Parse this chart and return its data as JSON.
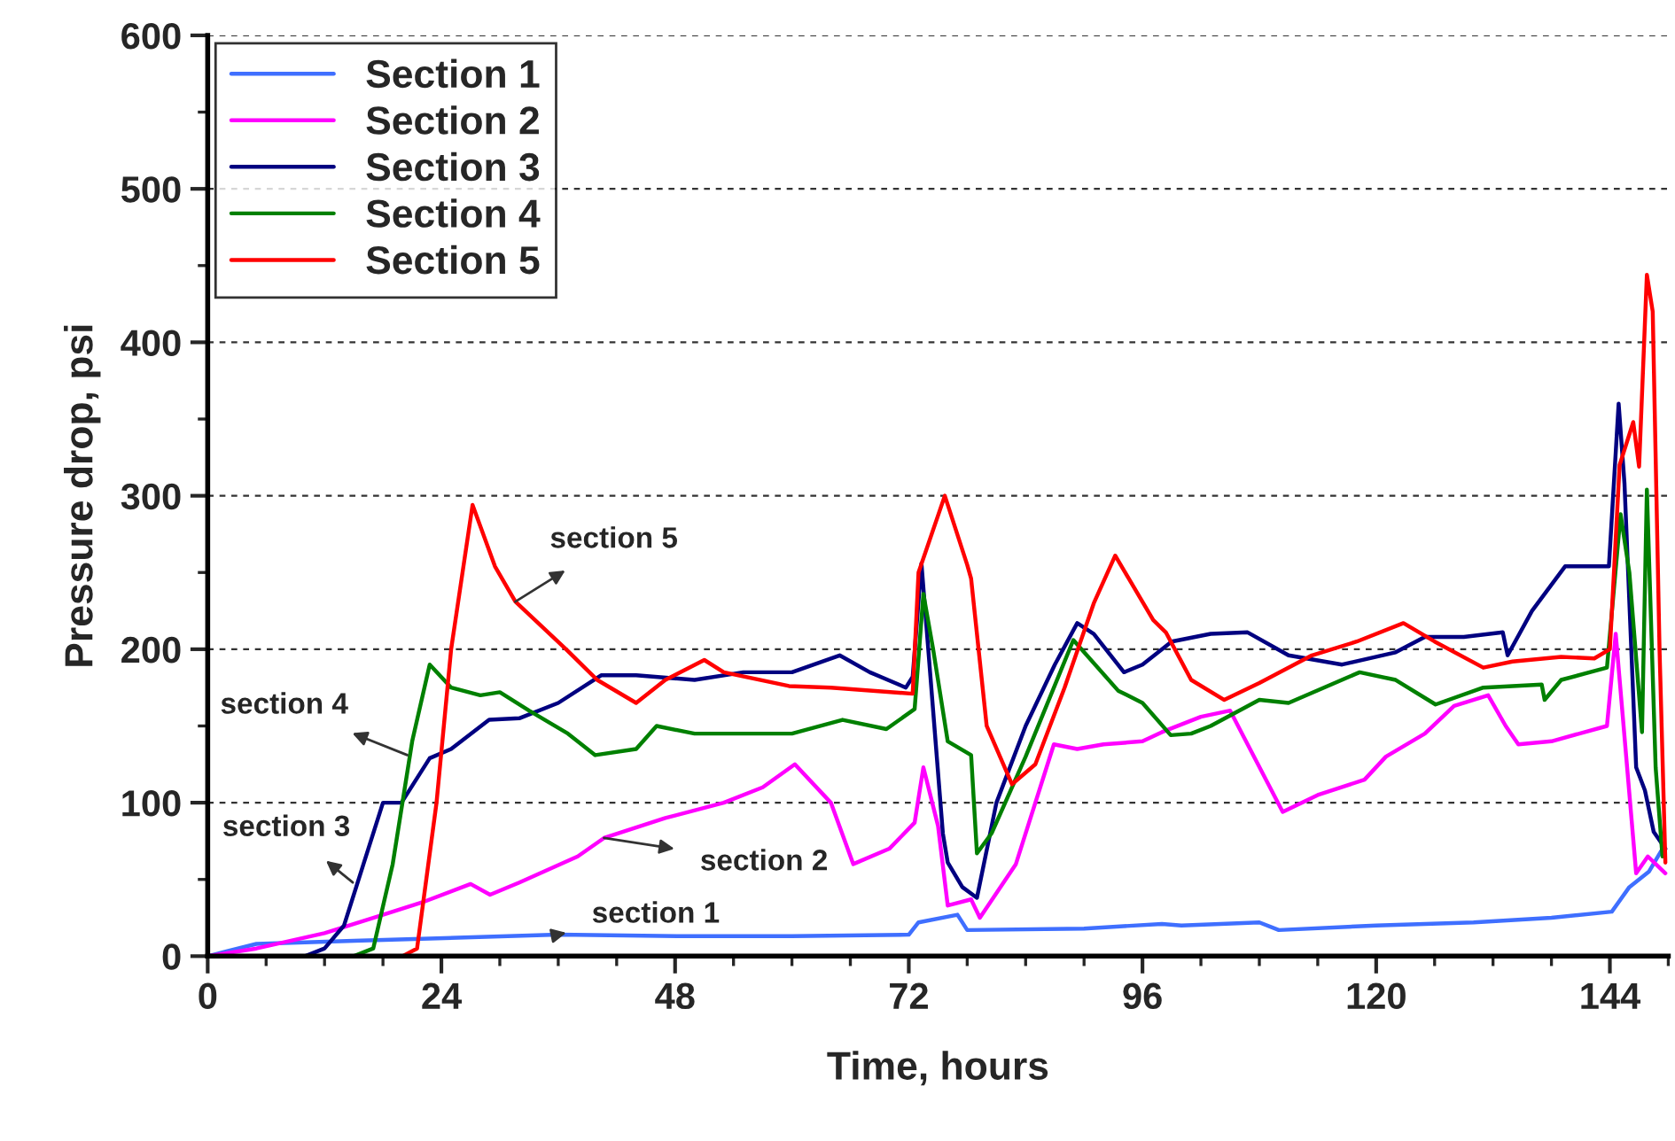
{
  "chart_data": {
    "type": "line",
    "xlabel": "Time, hours",
    "ylabel": "Pressure drop, psi",
    "xlim": [
      0,
      150
    ],
    "xticks": [
      0,
      24,
      48,
      72,
      96,
      120,
      144
    ],
    "ylim": [
      0,
      600
    ],
    "yticks": [
      0,
      100,
      200,
      300,
      400,
      500,
      600
    ],
    "grid": "y",
    "legend": "top left",
    "line_style": "solid",
    "marker": "none",
    "series": [
      {
        "name": "Section 1",
        "color": "#3f6fff",
        "x": [
          0,
          5,
          15,
          36,
          49,
          60,
          72,
          73,
          77,
          78,
          90,
          98,
          100,
          108,
          110,
          120,
          130,
          138,
          144.2,
          146,
          148,
          149.5
        ],
        "values": [
          0,
          8,
          10,
          14,
          13,
          13,
          14,
          22,
          27,
          17,
          18,
          21,
          20,
          22,
          17,
          20,
          22,
          25,
          29,
          45,
          55,
          71
        ]
      },
      {
        "name": "Section 2",
        "color": "#ff00ff",
        "x": [
          0,
          5,
          12,
          17,
          22,
          27,
          29,
          32,
          38,
          40.7,
          47,
          53,
          57,
          60.3,
          64,
          66.3,
          70,
          72.6,
          73.5,
          75,
          76,
          78.4,
          79.3,
          83,
          86.9,
          89.3,
          92,
          96,
          98,
          102,
          105,
          110.4,
          114,
          118.8,
          121,
          125,
          128,
          131.5,
          133.3,
          134.6,
          138,
          143.7,
          144.6,
          146.7,
          147.9,
          149.7
        ],
        "values": [
          0,
          5,
          15,
          25,
          35,
          47,
          40,
          48,
          65,
          77,
          90,
          100,
          110,
          125,
          100,
          60,
          70,
          87,
          123,
          85,
          33,
          37,
          25,
          60,
          138,
          135,
          138,
          140,
          146,
          156,
          160,
          94,
          105,
          115,
          130,
          145,
          163,
          170,
          150,
          138,
          140,
          150,
          210,
          54,
          65,
          54
        ]
      },
      {
        "name": "Section 3",
        "color": "#000080",
        "x": [
          0,
          10,
          12,
          14,
          16,
          18,
          19.9,
          22.8,
          25,
          28.9,
          32,
          36,
          40.4,
          44,
          50,
          55,
          60,
          64.9,
          68,
          71.7,
          72.4,
          73.3,
          74,
          75.5,
          76,
          77.5,
          79,
          81,
          84,
          87,
          89.3,
          91,
          94.1,
          96,
          99,
          103,
          106.8,
          111,
          116.5,
          122,
          125,
          129,
          133,
          133.5,
          136,
          139.4,
          143.9,
          144.9,
          145.5,
          146.7,
          147.6,
          148.5,
          149.7
        ],
        "values": [
          0,
          0,
          5,
          20,
          60,
          100,
          100,
          129,
          135,
          154,
          155,
          165,
          183,
          183,
          180,
          185,
          185,
          196,
          185,
          175,
          182,
          256,
          200,
          80,
          61,
          45,
          38,
          100,
          150,
          190,
          217,
          210,
          185,
          190,
          205,
          210,
          211,
          196,
          190,
          198,
          208,
          208,
          211,
          196,
          225,
          254,
          254,
          360,
          308,
          123,
          108,
          81,
          70
        ]
      },
      {
        "name": "Section 4",
        "color": "#008000",
        "x": [
          0,
          15,
          17,
          19,
          21,
          22.8,
          25,
          28,
          30,
          33,
          37,
          39.8,
          44,
          46.1,
          50,
          60,
          65.2,
          69.7,
          72.6,
          73.5,
          74.5,
          76,
          78.4,
          79,
          80.5,
          84,
          88.9,
          93.5,
          96,
          98.9,
          101,
          103,
          108,
          111,
          118.3,
          122,
          126.1,
          131,
          137,
          137.3,
          139,
          143.7,
          145.1,
          146,
          147.3,
          147.8,
          148.7,
          149.4
        ],
        "values": [
          0,
          0,
          5,
          60,
          140,
          190,
          175,
          170,
          172,
          160,
          145,
          131,
          135,
          150,
          145,
          145,
          154,
          148,
          161,
          236,
          200,
          140,
          131,
          67,
          80,
          130,
          206,
          173,
          165,
          144,
          145,
          150,
          167,
          165,
          185,
          180,
          164,
          175,
          177,
          167,
          180,
          188,
          288,
          250,
          146,
          304,
          123,
          65
        ]
      },
      {
        "name": "Section 5",
        "color": "#ff0000",
        "x": [
          0,
          20,
          21.5,
          23.5,
          25,
          27.2,
          29.5,
          31.6,
          36.8,
          40,
          44,
          47,
          51,
          53,
          59.7,
          64,
          72.4,
          73,
          75.7,
          78,
          78.4,
          80,
          82.6,
          85,
          88,
          91,
          93.2,
          97.1,
          98.4,
          101,
          104.4,
          108,
          113.4,
          118,
          122.8,
          126,
          131,
          134,
          139,
          142.4,
          144,
          145,
          146.4,
          147,
          147.8,
          148.4,
          149.1,
          149.7
        ],
        "values": [
          0,
          0,
          5,
          100,
          200,
          294,
          254,
          231,
          200,
          180,
          165,
          180,
          193,
          185,
          176,
          175,
          171,
          250,
          300,
          255,
          246,
          150,
          112,
          125,
          175,
          230,
          261,
          219,
          211,
          180,
          167,
          178,
          196,
          205,
          217,
          205,
          188,
          192,
          195,
          194,
          200,
          320,
          348,
          319,
          444,
          420,
          200,
          61
        ]
      }
    ],
    "annotations": [
      {
        "text": "section 5",
        "x": 31.6,
        "y": 231
      },
      {
        "text": "section 4",
        "x": 20.5,
        "y": 131
      },
      {
        "text": "section 3",
        "x": 14.9,
        "y": 48
      },
      {
        "text": "section 2",
        "x": 40.7,
        "y": 77
      },
      {
        "text": "section 1",
        "x": 35.9,
        "y": 14
      }
    ]
  }
}
